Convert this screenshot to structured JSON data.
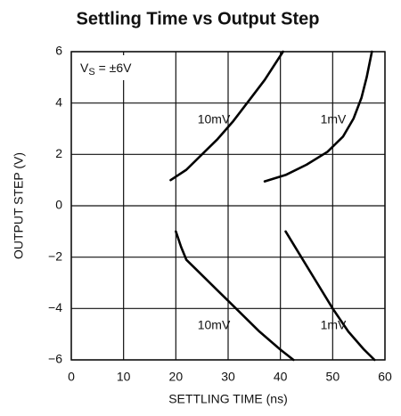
{
  "chart_data": {
    "type": "line",
    "title": "Settling Time vs Output Step",
    "x_label": "SETTLING TIME (ns)",
    "y_label": "OUTPUT STEP (V)",
    "annotation": {
      "main": "V",
      "sub": "S",
      "suffix": " = ±6V"
    },
    "xlim": [
      0,
      60
    ],
    "ylim": [
      -6,
      6
    ],
    "xticks": [
      0,
      10,
      20,
      30,
      40,
      50,
      60
    ],
    "yticks": [
      {
        "value": -6,
        "label": "−6"
      },
      {
        "value": -4,
        "label": "−4"
      },
      {
        "value": -2,
        "label": "−2"
      },
      0,
      2,
      4,
      6
    ],
    "grid": true,
    "series": [
      {
        "name": "10mV",
        "color": "#000000",
        "x": [
          19,
          22,
          25,
          28,
          31,
          34,
          37,
          40.5
        ],
        "values": [
          1,
          1.4,
          2,
          2.6,
          3.3,
          4.1,
          4.9,
          6
        ]
      },
      {
        "name": "1mV",
        "color": "#000000",
        "x": [
          37,
          41,
          45,
          49,
          52,
          54,
          55.5,
          56.5,
          57.5
        ],
        "values": [
          0.95,
          1.2,
          1.6,
          2.1,
          2.7,
          3.4,
          4.2,
          5,
          6
        ]
      },
      {
        "name": "10mV",
        "color": "#000000",
        "x": [
          20,
          21,
          22,
          24,
          28,
          32,
          36,
          40,
          42.5
        ],
        "values": [
          -1,
          -1.6,
          -2.1,
          -2.5,
          -3.3,
          -4.1,
          -4.9,
          -5.6,
          -6
        ]
      },
      {
        "name": "1mV",
        "color": "#000000",
        "x": [
          41,
          44,
          47,
          50,
          53,
          56,
          58
        ],
        "values": [
          -1,
          -2,
          -3,
          -4,
          -4.9,
          -5.6,
          -6
        ]
      }
    ]
  }
}
